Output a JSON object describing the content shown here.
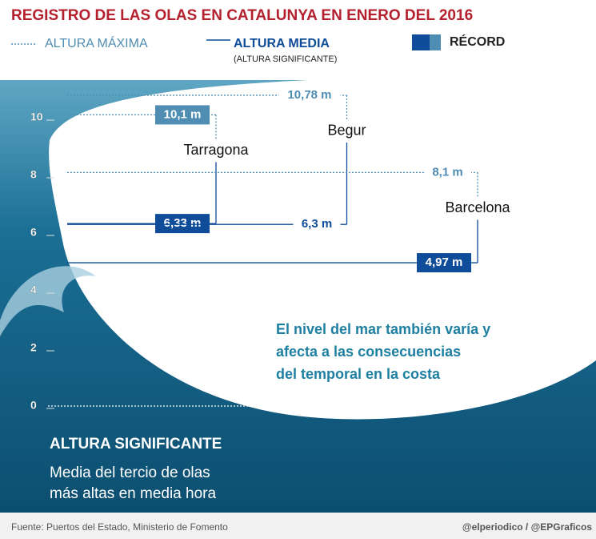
{
  "chart_data": {
    "type": "wave-levels",
    "title": "REGISTRO DE LAS OLAS EN CATALUNYA EN ENERO DEL 2016",
    "legend": {
      "max": "ALTURA MÁXIMA",
      "mean": "ALTURA MEDIA",
      "mean_sub": "(ALTURA SIGNIFICANTE)",
      "record": "RÉCORD"
    },
    "categories": [
      "Tarragona",
      "Begur",
      "Barcelona"
    ],
    "series": [
      {
        "name": "ALTURA MÁXIMA",
        "color": "#4f8db3",
        "style": "dotted",
        "values": [
          10.1,
          10.78,
          8.1
        ],
        "value_labels": [
          "10,1 m",
          "10,78 m",
          "8,1 m"
        ],
        "record": [
          true,
          false,
          false
        ]
      },
      {
        "name": "ALTURA MEDIA",
        "color": "#0f4c99",
        "style": "solid",
        "values": [
          6.33,
          6.3,
          4.97
        ],
        "value_labels": [
          "6,33 m",
          "6,3 m",
          "4,97 m"
        ],
        "record": [
          true,
          false,
          true
        ]
      }
    ],
    "ylim": [
      0,
      11
    ],
    "yticks": [
      0,
      2,
      4,
      6,
      8,
      10
    ],
    "note": [
      "El nivel del mar también varía y",
      "afecta a las consecuencias",
      "del temporal en la costa"
    ],
    "definition": {
      "title": "ALTURA SIGNIFICANTE",
      "lines": [
        "Media del tercio de olas",
        "más altas en media hora"
      ]
    },
    "source": "Fuente: Puertos del Estado, Ministerio de Fomento",
    "credit": "@elperiodico / @EPGraficos"
  }
}
